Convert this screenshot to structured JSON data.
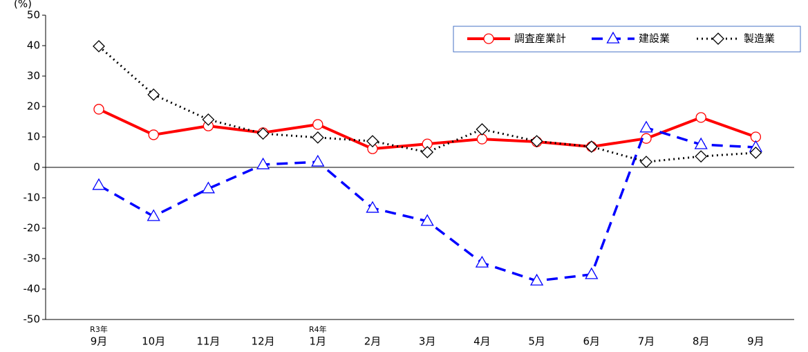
{
  "chart_data": {
    "type": "line",
    "y_label": "(%)",
    "categories": [
      "9月",
      "10月",
      "11月",
      "12月",
      "1月",
      "2月",
      "3月",
      "4月",
      "5月",
      "6月",
      "7月",
      "8月",
      "9月"
    ],
    "year_labels": [
      "R3年",
      null,
      null,
      null,
      "R4年",
      null,
      null,
      null,
      null,
      null,
      null,
      null,
      null
    ],
    "series": [
      {
        "name": "調査産業計",
        "color": "#ff0000",
        "marker": "circle",
        "dash": "solid",
        "values": [
          19.1,
          10.7,
          13.6,
          11.4,
          14.1,
          6.1,
          7.7,
          9.3,
          8.4,
          6.8,
          9.5,
          16.4,
          10.0
        ]
      },
      {
        "name": "建設業",
        "color": "#0000ff",
        "marker": "triangle",
        "dash": "dashed",
        "values": [
          -5.9,
          -16.1,
          -7.0,
          0.9,
          1.8,
          -13.4,
          -17.7,
          -31.4,
          -37.3,
          -35.2,
          13.0,
          7.5,
          6.6
        ]
      },
      {
        "name": "製造業",
        "color": "#000000",
        "marker": "diamond",
        "dash": "dotted",
        "values": [
          39.8,
          23.9,
          15.7,
          11.1,
          9.8,
          8.6,
          5.0,
          12.5,
          8.6,
          6.8,
          1.8,
          3.6,
          4.8
        ]
      }
    ],
    "ylim": [
      -50,
      50
    ],
    "yticks": [
      -50,
      -40,
      -30,
      -20,
      -10,
      0,
      10,
      20,
      30,
      40,
      50
    ],
    "zero_line": true,
    "legend": "top-right"
  }
}
